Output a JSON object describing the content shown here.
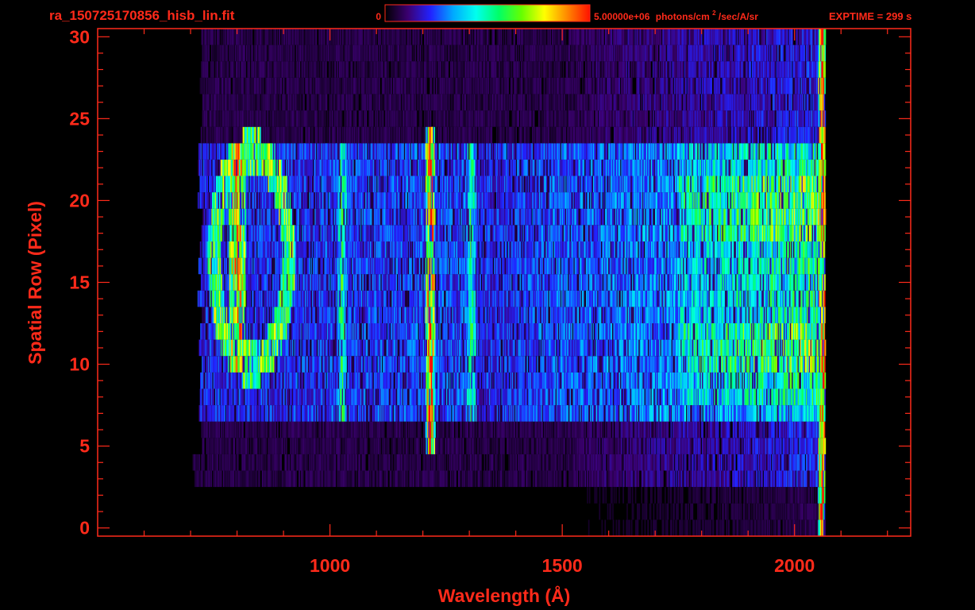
{
  "header": {
    "filename": "ra_150725170856_hisb_lin.fit",
    "colorbar_min_label": "0",
    "colorbar_max_value": "5.00000e+06",
    "colorbar_unit_pre": "photons/cm",
    "colorbar_unit_sup": "2",
    "colorbar_unit_post": "/sec/A/sr",
    "exptime": "EXPTIME = 299 s"
  },
  "colors": {
    "axis": "#ff2a1a",
    "background": "#000000",
    "colormap": [
      "#000000",
      "#3b0070",
      "#2222ff",
      "#00aaff",
      "#00ffee",
      "#00ff66",
      "#66ff00",
      "#ffff00",
      "#ff8800",
      "#ff1100"
    ]
  },
  "chart_data": {
    "type": "heatmap",
    "title": "",
    "xlabel": "Wavelength (Å)",
    "ylabel": "Spatial Row (Pixel)",
    "xlim": [
      500,
      2250
    ],
    "ylim": [
      -0.5,
      30.5
    ],
    "x_ticks": [
      1000,
      1500,
      2000
    ],
    "x_tick_labels": [
      "1000",
      "1500",
      "2000"
    ],
    "y_ticks": [
      0,
      5,
      10,
      15,
      20,
      25,
      30
    ],
    "y_tick_labels": [
      "0",
      "5",
      "10",
      "15",
      "20",
      "25",
      "30"
    ],
    "colorbar_range": [
      0,
      5000000
    ],
    "data_extent": {
      "wavelength": [
        700,
        2065
      ],
      "rows": [
        0,
        30
      ]
    },
    "features": [
      {
        "wavelength": 800,
        "rows": [
          10,
          23
        ],
        "level": 0.9
      },
      {
        "wavelength": 1025,
        "rows": [
          7,
          23
        ],
        "level": 0.55
      },
      {
        "wavelength": 1215,
        "rows": [
          5,
          24
        ],
        "level": 0.95
      },
      {
        "wavelength": 1304,
        "rows": [
          7,
          23
        ],
        "level": 0.55
      },
      {
        "wavelength": 2060,
        "rows": [
          0,
          30
        ],
        "level": 0.95
      }
    ],
    "continuum": [
      {
        "wavelength": [
          1750,
          2060
        ],
        "rows": [
          8,
          23
        ],
        "level": 0.65
      }
    ],
    "grid": false
  }
}
